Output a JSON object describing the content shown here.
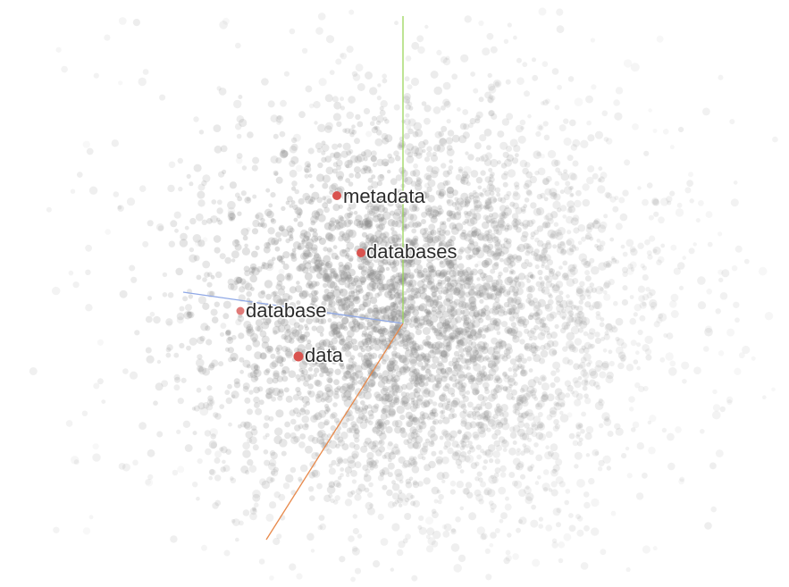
{
  "projector": {
    "highlighted_points": [
      {
        "label": "metadata"
      },
      {
        "label": "databases"
      },
      {
        "label": "database"
      },
      {
        "label": "data"
      }
    ],
    "colors": {
      "background": "#ffffff",
      "point": "#8c8c8c",
      "highlight": "#d9534f",
      "axis_x": "#e8894a",
      "axis_y": "#9bd65a",
      "axis_z": "#8fa8e6",
      "label_text": "#2b2b2b"
    }
  }
}
